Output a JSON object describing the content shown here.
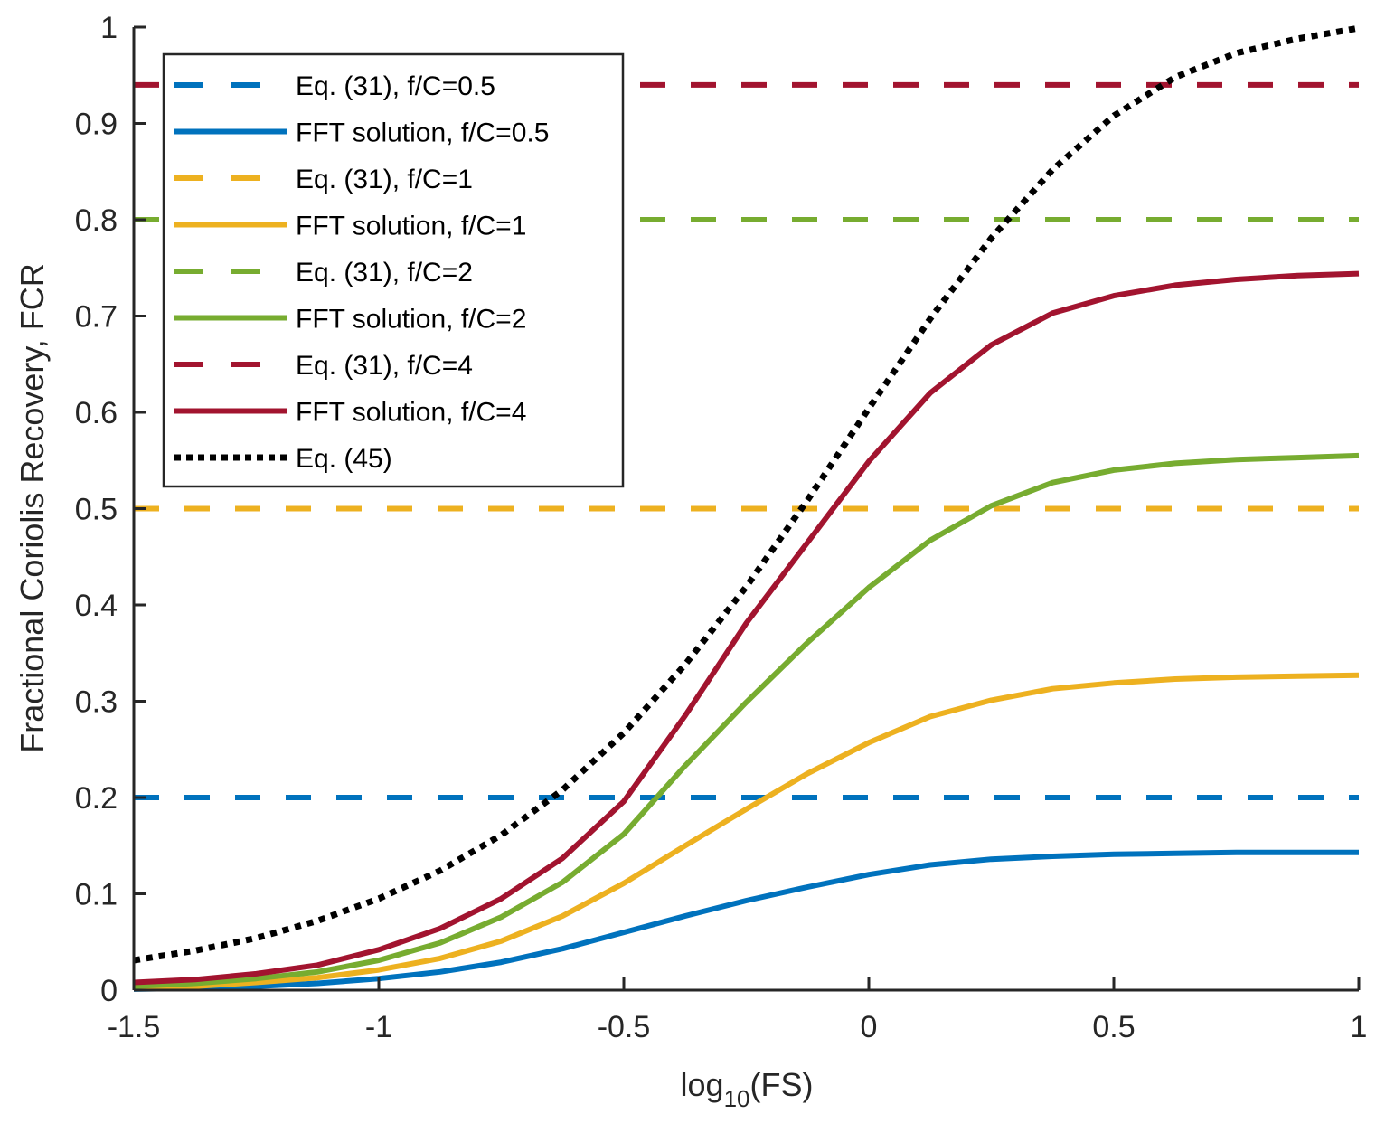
{
  "chart_data": {
    "type": "line",
    "title": "",
    "xlabel": "log10(FS)",
    "xlabel_base": "log",
    "xlabel_sub": "10",
    "xlabel_tail": "(FS)",
    "ylabel": "Fractional Coriolis Recovery, FCR",
    "xlim": [
      -1.5,
      1
    ],
    "ylim": [
      0,
      1
    ],
    "grid": false,
    "legend_position": "top-left",
    "xticks": [
      -1.5,
      -1,
      -0.5,
      0,
      0.5,
      1
    ],
    "xtick_labels": [
      "-1.5",
      "-1",
      "-0.5",
      "0",
      "0.5",
      "1"
    ],
    "yticks": [
      0,
      0.1,
      0.2,
      0.3,
      0.4,
      0.5,
      0.6,
      0.7,
      0.8,
      0.9,
      1
    ],
    "ytick_labels": [
      "0",
      "0.1",
      "0.2",
      "0.3",
      "0.4",
      "0.5",
      "0.6",
      "0.7",
      "0.8",
      "0.9",
      "1"
    ],
    "x": [
      -1.5,
      -1.375,
      -1.25,
      -1.125,
      -1,
      -0.875,
      -0.75,
      -0.625,
      -0.5,
      -0.375,
      -0.25,
      -0.125,
      0,
      0.125,
      0.25,
      0.375,
      0.5,
      0.625,
      0.75,
      0.875,
      1
    ],
    "series": [
      {
        "name": "Eq. (31), f/C=0.5",
        "style": "dashed",
        "color": "#0072BD",
        "values": [
          0.2,
          0.2
        ]
      },
      {
        "name": "FFT solution, f/C=0.5",
        "style": "solid",
        "color": "#0072BD",
        "values": [
          0.001,
          0.002,
          0.004,
          0.007,
          0.012,
          0.019,
          0.029,
          0.043,
          0.06,
          0.077,
          0.093,
          0.107,
          0.12,
          0.13,
          0.136,
          0.139,
          0.141,
          0.142,
          0.143,
          0.143,
          0.143
        ]
      },
      {
        "name": "Eq. (31), f/C=1",
        "style": "dashed",
        "color": "#EDB120",
        "values": [
          0.5,
          0.5
        ]
      },
      {
        "name": "FFT solution, f/C=1",
        "style": "solid",
        "color": "#EDB120",
        "values": [
          0.002,
          0.004,
          0.008,
          0.013,
          0.021,
          0.033,
          0.051,
          0.077,
          0.111,
          0.15,
          0.188,
          0.225,
          0.257,
          0.284,
          0.301,
          0.313,
          0.319,
          0.323,
          0.325,
          0.326,
          0.327
        ]
      },
      {
        "name": "Eq. (31), f/C=2",
        "style": "dashed",
        "color": "#77AC30",
        "values": [
          0.8,
          0.8
        ]
      },
      {
        "name": "FFT solution, f/C=2",
        "style": "solid",
        "color": "#77AC30",
        "values": [
          0.004,
          0.007,
          0.012,
          0.019,
          0.031,
          0.049,
          0.076,
          0.112,
          0.162,
          0.233,
          0.299,
          0.361,
          0.418,
          0.467,
          0.503,
          0.527,
          0.54,
          0.547,
          0.551,
          0.553,
          0.555
        ]
      },
      {
        "name": "Eq. (31), f/C=4",
        "style": "dashed",
        "color": "#A2142F",
        "values": [
          0.94,
          0.94
        ]
      },
      {
        "name": "FFT solution, f/C=4",
        "style": "solid",
        "color": "#A2142F",
        "values": [
          0.008,
          0.011,
          0.017,
          0.026,
          0.042,
          0.064,
          0.095,
          0.137,
          0.196,
          0.285,
          0.381,
          0.465,
          0.549,
          0.62,
          0.67,
          0.703,
          0.721,
          0.732,
          0.738,
          0.742,
          0.744
        ]
      },
      {
        "name": "Eq. (45)",
        "style": "dotted",
        "color": "#000000",
        "values": [
          0.031,
          0.041,
          0.054,
          0.072,
          0.095,
          0.124,
          0.161,
          0.208,
          0.267,
          0.338,
          0.419,
          0.509,
          0.604,
          0.697,
          0.781,
          0.852,
          0.908,
          0.948,
          0.973,
          0.988,
          0.999
        ]
      }
    ]
  }
}
